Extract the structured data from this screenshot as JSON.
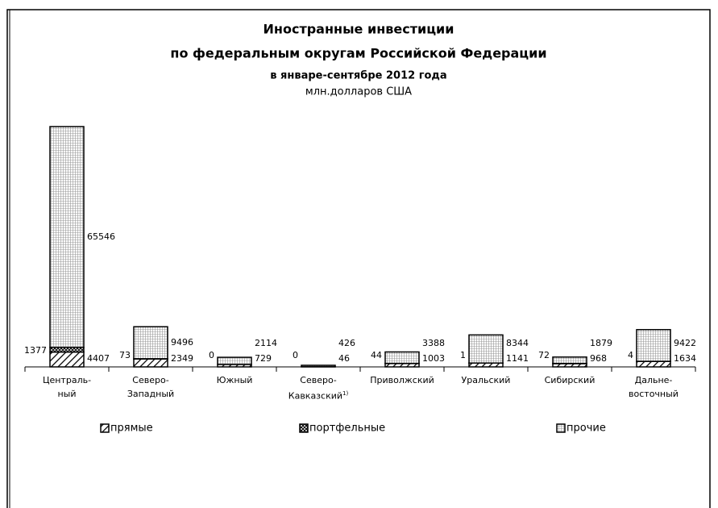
{
  "chart_data": {
    "type": "stacked_bar",
    "title": "Иностранные инвестиции",
    "subtitle": "по федеральным округам Российской Федерации",
    "period": "в январе-сентябре 2012 года",
    "units": "млн.долларов США",
    "categories": [
      "Централь-\nный",
      "Северо-\nЗападный",
      "Южный",
      "Северо-\nКавказский",
      "Приволжский",
      "Уральский",
      "Сибирский",
      "Дальне-\nвосточный"
    ],
    "category_footnote": "1)",
    "series": [
      {
        "name": "прямые",
        "color": "#000000",
        "pattern": "diagonal",
        "values": [
          4407,
          2349,
          729,
          46,
          1003,
          1141,
          968,
          1634
        ]
      },
      {
        "name": "портфельные",
        "color": "#000000",
        "pattern": "cross",
        "values": [
          1377,
          73,
          0,
          0,
          44,
          1,
          72,
          4
        ]
      },
      {
        "name": "прочие",
        "color": "#000000",
        "pattern": "grid",
        "values": [
          65546,
          9496,
          2114,
          426,
          3388,
          8344,
          1879,
          9422
        ]
      }
    ]
  }
}
